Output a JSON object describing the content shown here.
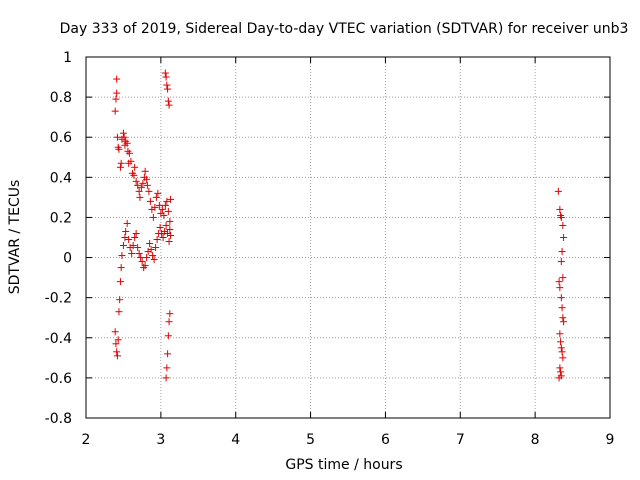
{
  "chart_data": {
    "type": "scatter",
    "title": "Day 333 of 2019, Sidereal Day-to-day VTEC variation (SDTVAR) for receiver unb3",
    "xlabel": "GPS time / hours",
    "ylabel": "SDTVAR / TECUs",
    "xlim": [
      2,
      9
    ],
    "ylim": [
      -0.8,
      1
    ],
    "xticks": [
      "2",
      "3",
      "4",
      "5",
      "6",
      "7",
      "8",
      "9"
    ],
    "yticks": [
      "-0.8",
      "-0.6",
      "-0.4",
      "-0.2",
      "0",
      "0.2",
      "0.4",
      "0.6",
      "0.8",
      "1"
    ],
    "grid": true,
    "marker": "+",
    "colors": {
      "series": "#e00000",
      "grid": "#a0a0a0",
      "axis": "#000000"
    },
    "series": [
      {
        "name": "sdtvar",
        "points": [
          [
            2.39,
            0.73
          ],
          [
            2.4,
            0.79
          ],
          [
            2.41,
            0.82
          ],
          [
            2.41,
            0.89
          ],
          [
            2.42,
            0.6
          ],
          [
            2.43,
            0.55
          ],
          [
            2.44,
            0.54
          ],
          [
            2.46,
            0.45
          ],
          [
            2.47,
            0.47
          ],
          [
            2.48,
            0.59
          ],
          [
            2.5,
            0.62
          ],
          [
            2.51,
            0.6
          ],
          [
            2.52,
            0.56
          ],
          [
            2.53,
            0.58
          ],
          [
            2.55,
            0.57
          ],
          [
            2.56,
            0.53
          ],
          [
            2.57,
            0.47
          ],
          [
            2.58,
            0.52
          ],
          [
            2.6,
            0.48
          ],
          [
            2.62,
            0.42
          ],
          [
            2.64,
            0.41
          ],
          [
            2.65,
            0.45
          ],
          [
            2.67,
            0.38
          ],
          [
            2.69,
            0.36
          ],
          [
            2.71,
            0.33
          ],
          [
            2.72,
            0.3
          ],
          [
            2.74,
            0.35
          ],
          [
            2.76,
            0.37
          ],
          [
            2.78,
            0.4
          ],
          [
            2.79,
            0.43
          ],
          [
            2.81,
            0.39
          ],
          [
            2.82,
            0.36
          ],
          [
            2.84,
            0.33
          ],
          [
            2.86,
            0.28
          ],
          [
            2.88,
            0.24
          ],
          [
            2.9,
            0.2
          ],
          [
            2.92,
            0.25
          ],
          [
            2.94,
            0.3
          ],
          [
            2.96,
            0.32
          ],
          [
            2.98,
            0.26
          ],
          [
            3.0,
            0.22
          ],
          [
            3.02,
            0.24
          ],
          [
            3.04,
            0.21
          ],
          [
            3.06,
            0.26
          ],
          [
            3.08,
            0.28
          ],
          [
            3.1,
            0.23
          ],
          [
            3.12,
            0.18
          ],
          [
            3.13,
            0.29
          ],
          [
            2.39,
            -0.37
          ],
          [
            2.4,
            -0.43
          ],
          [
            2.41,
            -0.47
          ],
          [
            2.42,
            -0.49
          ],
          [
            2.43,
            -0.41
          ],
          [
            2.44,
            -0.27
          ],
          [
            2.45,
            -0.21
          ],
          [
            2.46,
            -0.12
          ],
          [
            2.47,
            -0.05
          ],
          [
            2.48,
            0.01
          ],
          [
            2.5,
            0.06
          ],
          [
            2.52,
            0.1
          ],
          [
            2.53,
            0.13
          ],
          [
            2.55,
            0.17
          ],
          [
            2.57,
            0.09
          ],
          [
            2.59,
            0.05
          ],
          [
            2.61,
            0.02
          ],
          [
            2.63,
            0.06
          ],
          [
            2.65,
            0.1
          ],
          [
            2.67,
            0.12
          ],
          [
            2.69,
            0.05
          ],
          [
            2.71,
            0.02
          ],
          [
            2.73,
            0.0
          ],
          [
            2.75,
            -0.02
          ],
          [
            2.77,
            -0.05
          ],
          [
            2.79,
            -0.04
          ],
          [
            2.81,
            0.0
          ],
          [
            2.83,
            0.03
          ],
          [
            2.85,
            0.07
          ],
          [
            2.87,
            0.04
          ],
          [
            2.89,
            0.01
          ],
          [
            2.91,
            -0.01
          ],
          [
            2.93,
            0.05
          ],
          [
            2.95,
            0.09
          ],
          [
            2.97,
            0.12
          ],
          [
            2.99,
            0.15
          ],
          [
            3.01,
            0.12
          ],
          [
            3.03,
            0.1
          ],
          [
            3.05,
            0.13
          ],
          [
            3.07,
            0.16
          ],
          [
            3.09,
            0.12
          ],
          [
            3.11,
            0.08
          ],
          [
            3.12,
            0.14
          ],
          [
            3.13,
            0.11
          ],
          [
            3.06,
            0.92
          ],
          [
            3.07,
            0.9
          ],
          [
            3.08,
            0.86
          ],
          [
            3.09,
            0.84
          ],
          [
            3.1,
            0.78
          ],
          [
            3.11,
            0.76
          ],
          [
            3.07,
            -0.6
          ],
          [
            3.08,
            -0.55
          ],
          [
            3.09,
            -0.48
          ],
          [
            3.1,
            -0.39
          ],
          [
            3.11,
            -0.32
          ],
          [
            3.12,
            -0.28
          ],
          [
            8.31,
            0.33
          ],
          [
            8.33,
            0.24
          ],
          [
            8.34,
            0.21
          ],
          [
            8.35,
            0.2
          ],
          [
            8.37,
            0.16
          ],
          [
            8.38,
            0.1
          ],
          [
            8.36,
            0.03
          ],
          [
            8.35,
            -0.02
          ],
          [
            8.37,
            -0.1
          ],
          [
            8.32,
            -0.12
          ],
          [
            8.33,
            -0.15
          ],
          [
            8.35,
            -0.2
          ],
          [
            8.36,
            -0.25
          ],
          [
            8.37,
            -0.3
          ],
          [
            8.38,
            -0.32
          ],
          [
            8.33,
            -0.38
          ],
          [
            8.34,
            -0.42
          ],
          [
            8.35,
            -0.45
          ],
          [
            8.36,
            -0.47
          ],
          [
            8.37,
            -0.5
          ],
          [
            8.33,
            -0.55
          ],
          [
            8.34,
            -0.57
          ],
          [
            8.35,
            -0.59
          ],
          [
            8.32,
            -0.6
          ]
        ]
      }
    ]
  }
}
